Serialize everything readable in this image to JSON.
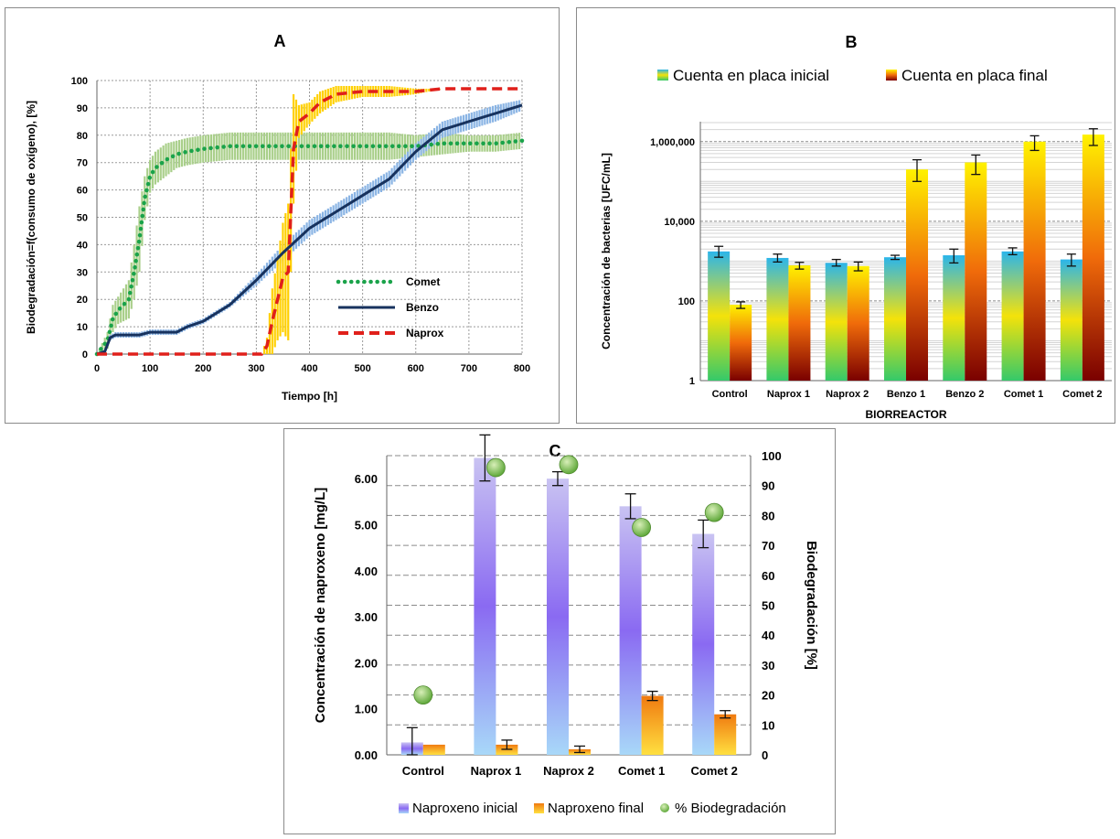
{
  "chart_data": [
    {
      "id": "A",
      "type": "line",
      "title": "A",
      "xlabel": "Tiempo [h]",
      "ylabel": "Biodegradación=f(consumo de oxígeno), [%]",
      "xlim": [
        0,
        800
      ],
      "ylim": [
        0,
        100
      ],
      "xticks": [
        "0",
        "100",
        "200",
        "300",
        "400",
        "500",
        "600",
        "700",
        "800"
      ],
      "yticks": [
        "0",
        "10",
        "20",
        "30",
        "40",
        "50",
        "60",
        "70",
        "80",
        "90",
        "100"
      ],
      "grid": true,
      "legend": "right",
      "series": [
        {
          "name": "Comet",
          "color": "#1aa34a",
          "band_color": "#a9cf8a",
          "style": "dotted",
          "x": [
            0,
            20,
            30,
            40,
            50,
            60,
            70,
            80,
            90,
            100,
            110,
            130,
            150,
            170,
            200,
            250,
            300,
            350,
            400,
            450,
            500,
            550,
            600,
            650,
            700,
            750,
            800
          ],
          "y": [
            0,
            5,
            13,
            16,
            18,
            20,
            30,
            42,
            57,
            65,
            68,
            71,
            73,
            74,
            75,
            76,
            76,
            76,
            76,
            76,
            76,
            76,
            76,
            77,
            77,
            77,
            78
          ],
          "err": [
            0,
            3,
            5,
            5,
            6,
            7,
            10,
            12,
            8,
            6,
            6,
            6,
            5,
            5,
            5,
            5,
            5,
            5,
            5,
            5,
            5,
            5,
            4,
            4,
            3,
            3,
            3
          ]
        },
        {
          "name": "Benzo",
          "color": "#17325e",
          "band_color": "#8ab4e4",
          "style": "solid",
          "x": [
            0,
            15,
            25,
            35,
            50,
            80,
            100,
            110,
            120,
            150,
            170,
            200,
            250,
            300,
            350,
            400,
            450,
            500,
            550,
            600,
            650,
            700,
            750,
            800
          ],
          "y": [
            0,
            1,
            6,
            7,
            7,
            7,
            8,
            8,
            8,
            8,
            10,
            12,
            18,
            27,
            37,
            46,
            52,
            58,
            64,
            74,
            82,
            85,
            88,
            91
          ],
          "err": [
            0,
            0,
            1,
            1,
            1,
            1,
            1,
            1,
            1,
            1,
            1,
            1,
            1,
            2,
            3,
            3,
            3,
            3,
            3,
            3,
            3,
            3,
            3,
            2
          ]
        },
        {
          "name": "Naprox",
          "color": "#e0201b",
          "band_color": "#ffd000",
          "style": "dashed",
          "x": [
            0,
            310,
            320,
            330,
            340,
            350,
            360,
            370,
            380,
            400,
            420,
            450,
            500,
            550,
            600,
            650,
            700,
            750,
            800
          ],
          "y": [
            0,
            0,
            3,
            12,
            20,
            28,
            30,
            75,
            85,
            88,
            92,
            95,
            96,
            96,
            96,
            97,
            97,
            97,
            97
          ],
          "err": [
            0,
            0,
            3,
            12,
            15,
            20,
            25,
            20,
            6,
            4,
            4,
            3,
            2,
            2,
            1,
            0,
            0,
            0,
            0
          ]
        }
      ]
    },
    {
      "id": "B",
      "type": "bar",
      "title": "B",
      "xlabel": "BIORREACTOR",
      "ylabel": "Concentración de bacterias  [UFC/mL]",
      "scale": "log",
      "ylim": [
        1,
        1000000
      ],
      "yticks": [
        "1",
        "100",
        "10,000",
        "1,000,000"
      ],
      "legend": "top",
      "categories": [
        "Control",
        "Naprox 1",
        "Naprox 2",
        "Benzo 1",
        "Benzo 2",
        "Comet 1",
        "Comet 2"
      ],
      "series": [
        {
          "name": "Cuenta en placa inicial",
          "colors": [
            "#2bb5ea",
            "#f4e20a",
            "#35c96a"
          ],
          "values": [
            1750,
            1200,
            900,
            1250,
            1400,
            1750,
            1100
          ],
          "err_lo": [
            500,
            250,
            150,
            150,
            500,
            300,
            350
          ],
          "err_hi": [
            600,
            300,
            200,
            150,
            600,
            400,
            400
          ]
        },
        {
          "name": "Cuenta en placa final",
          "colors": [
            "#fff200",
            "#f06b0a",
            "#7a0000"
          ],
          "values": [
            80,
            780,
            750,
            200000,
            300000,
            1000000,
            1500000
          ],
          "err_lo": [
            15,
            150,
            180,
            100000,
            150000,
            400000,
            700000
          ],
          "err_hi": [
            15,
            150,
            200,
            150000,
            160000,
            400000,
            600000
          ]
        }
      ]
    },
    {
      "id": "C",
      "type": "bar",
      "title": "C",
      "ylabel": "Concentración de naproxeno [mg/L]",
      "y2label": "Biodegradación [%]",
      "ylim": [
        0,
        6.5
      ],
      "y2lim": [
        0,
        100
      ],
      "yticks": [
        "0.00",
        "1.00",
        "2.00",
        "3.00",
        "4.00",
        "5.00",
        "6.00"
      ],
      "y2ticks": [
        "0",
        "10",
        "20",
        "30",
        "40",
        "50",
        "60",
        "70",
        "80",
        "90",
        "100"
      ],
      "legend": "bottom",
      "categories": [
        "Control",
        "Naprox 1",
        "Naprox 2",
        "Comet 1",
        "Comet 2"
      ],
      "series": [
        {
          "name": "Naproxeno inicial",
          "colors": [
            "#c9c3f2",
            "#8a6af2",
            "#a8d8f8"
          ],
          "values": [
            0.27,
            6.45,
            6.0,
            5.4,
            4.8
          ],
          "err": [
            0.32,
            0.5,
            0.15,
            0.27,
            0.3
          ]
        },
        {
          "name": "Naproxeno final",
          "colors": [
            "#f07a10",
            "#ffe040"
          ],
          "values": [
            0.22,
            0.22,
            0.12,
            1.28,
            0.88
          ],
          "err": [
            0.0,
            0.1,
            0.07,
            0.1,
            0.08
          ]
        },
        {
          "name": "% Biodegradación",
          "color": "#5fa83a",
          "values": [
            20,
            96,
            97,
            76,
            81
          ]
        }
      ]
    }
  ]
}
